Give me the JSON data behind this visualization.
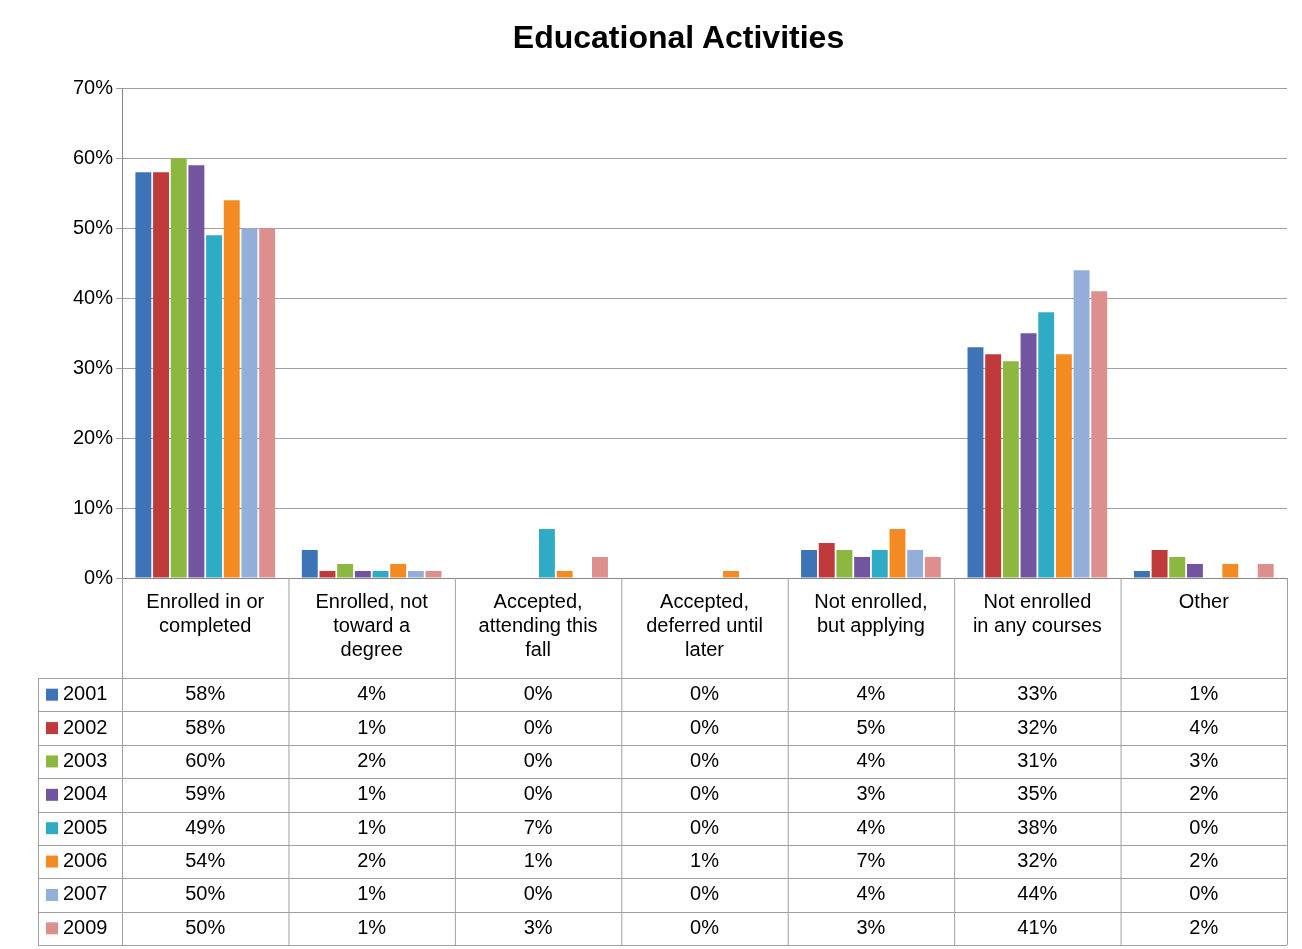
{
  "chart_data": {
    "type": "bar",
    "title": "Educational Activities",
    "categories": [
      "Enrolled in or completed",
      "Enrolled, not toward a degree",
      "Accepted, attending this fall",
      "Accepted, deferred until later",
      "Not enrolled, but applying",
      "Not enrolled in any courses",
      "Other"
    ],
    "series": [
      {
        "name": "2001",
        "color": "#3f73b8",
        "values": [
          58,
          4,
          0,
          0,
          4,
          33,
          1
        ],
        "value_labels": [
          "58%",
          "4%",
          "0%",
          "0%",
          "4%",
          "33%",
          "1%"
        ]
      },
      {
        "name": "2002",
        "color": "#c0393b",
        "values": [
          58,
          1,
          0,
          0,
          5,
          32,
          4
        ],
        "value_labels": [
          "58%",
          "1%",
          "0%",
          "0%",
          "5%",
          "32%",
          "4%"
        ]
      },
      {
        "name": "2003",
        "color": "#8db83f",
        "values": [
          60,
          2,
          0,
          0,
          4,
          31,
          3
        ],
        "value_labels": [
          "60%",
          "2%",
          "0%",
          "0%",
          "4%",
          "31%",
          "3%"
        ]
      },
      {
        "name": "2004",
        "color": "#7254a0",
        "values": [
          59,
          1,
          0,
          0,
          3,
          35,
          2
        ],
        "value_labels": [
          "59%",
          "1%",
          "0%",
          "0%",
          "3%",
          "35%",
          "2%"
        ]
      },
      {
        "name": "2005",
        "color": "#2fabc6",
        "values": [
          49,
          1,
          7,
          0,
          4,
          38,
          0
        ],
        "value_labels": [
          "49%",
          "1%",
          "7%",
          "0%",
          "4%",
          "38%",
          "0%"
        ]
      },
      {
        "name": "2006",
        "color": "#f38b22",
        "values": [
          54,
          2,
          1,
          1,
          7,
          32,
          2
        ],
        "value_labels": [
          "54%",
          "2%",
          "1%",
          "1%",
          "7%",
          "32%",
          "2%"
        ]
      },
      {
        "name": "2007",
        "color": "#93afd9",
        "values": [
          50,
          1,
          0,
          0,
          4,
          44,
          0
        ],
        "value_labels": [
          "50%",
          "1%",
          "0%",
          "0%",
          "4%",
          "44%",
          "0%"
        ]
      },
      {
        "name": "2009",
        "color": "#dc8f8c",
        "values": [
          50,
          1,
          3,
          0,
          3,
          41,
          2
        ],
        "value_labels": [
          "50%",
          "1%",
          "3%",
          "0%",
          "3%",
          "41%",
          "2%"
        ]
      }
    ],
    "ylim": [
      0,
      70
    ],
    "yticks": [
      {
        "value": 0,
        "label": "0%"
      },
      {
        "value": 10,
        "label": "10%"
      },
      {
        "value": 20,
        "label": "20%"
      },
      {
        "value": 30,
        "label": "30%"
      },
      {
        "value": 40,
        "label": "40%"
      },
      {
        "value": 50,
        "label": "50%"
      },
      {
        "value": 60,
        "label": "60%"
      },
      {
        "value": 70,
        "label": "70%"
      }
    ],
    "grid": "y",
    "legend": "bottom"
  }
}
